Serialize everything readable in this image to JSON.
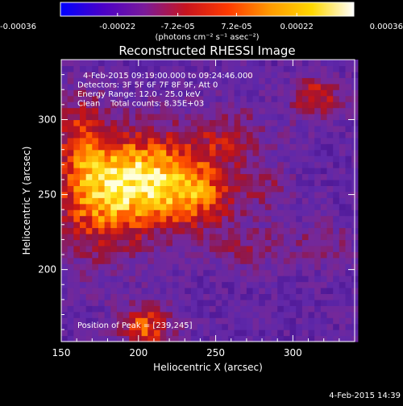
{
  "chart_data": {
    "type": "heatmap",
    "title": "Reconstructed RHESSI Image",
    "colorbar": {
      "tick_labels": [
        "-0.00036",
        "-0.00022",
        "-7.2e-05",
        "7.2e-05",
        "0.00022",
        "0.00036"
      ],
      "range": [
        -0.00036,
        0.00036
      ],
      "unit_label": "(photons cm⁻² s⁻¹ asec⁻²)",
      "colors": [
        "#0000ff",
        "#4a00c8",
        "#7a1a9a",
        "#c8141e",
        "#ff3a00",
        "#ff9a00",
        "#ffd800",
        "#ffffff"
      ]
    },
    "annotations": [
      "4-Feb-2015 09:19:00.000 to 09:24:46.000",
      "Detectors: 3F 5F 6F 7F 8F 9F, Att 0",
      "Energy Range: 12.0 - 25.0 keV",
      "Clean    Total counts: 8.35E+03"
    ],
    "peak_label": "Position of Peak = [239,245]",
    "peak": [
      239,
      245
    ],
    "xlabel": "Heliocentric X (arcsec)",
    "ylabel": "Heliocentric Y (arcsec)",
    "xlim": [
      150,
      340
    ],
    "ylim": [
      152,
      340
    ],
    "x_ticks": [
      "150",
      "200",
      "250",
      "300"
    ],
    "y_ticks": [
      "200",
      "250",
      "300"
    ],
    "grid": false,
    "emission": [
      {
        "x": 210,
        "y": 262,
        "sx": 30,
        "sy": 22,
        "amp": 1.1
      },
      {
        "x": 240,
        "y": 248,
        "sx": 20,
        "sy": 14,
        "amp": 0.5
      },
      {
        "x": 175,
        "y": 245,
        "sx": 24,
        "sy": 28,
        "amp": 0.75
      },
      {
        "x": 163,
        "y": 290,
        "sx": 12,
        "sy": 22,
        "amp": 0.55
      },
      {
        "x": 260,
        "y": 290,
        "sx": 18,
        "sy": 14,
        "amp": 0.4
      },
      {
        "x": 315,
        "y": 315,
        "sx": 12,
        "sy": 10,
        "amp": 0.7
      },
      {
        "x": 205,
        "y": 162,
        "sx": 12,
        "sy": 10,
        "amp": 0.9
      },
      {
        "x": 270,
        "y": 215,
        "sx": 20,
        "sy": 10,
        "amp": 0.35
      },
      {
        "x": 320,
        "y": 218,
        "sx": 16,
        "sy": 10,
        "amp": 0.3
      },
      {
        "x": 285,
        "y": 255,
        "sx": 10,
        "sy": 10,
        "amp": 0.3
      }
    ],
    "background_level": -0.5
  },
  "footer": {
    "timestamp": "4-Feb-2015 14:39"
  }
}
